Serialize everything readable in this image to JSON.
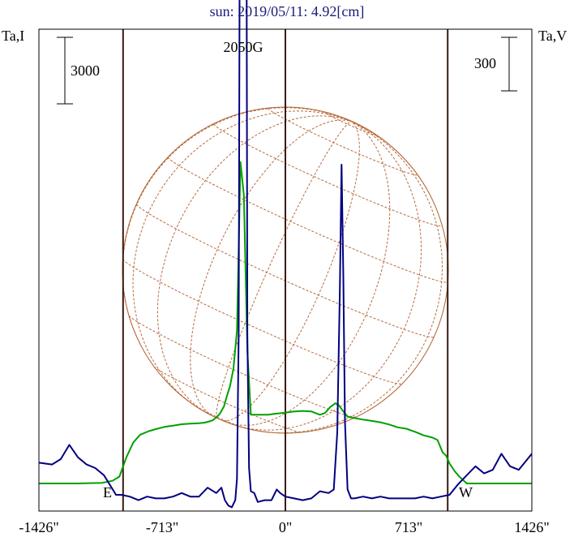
{
  "chart_data": {
    "type": "line",
    "title": "sun: 2019/05/11: 4.92[cm]",
    "left_axis_label": "Ta,I",
    "right_axis_label": "Ta,V",
    "left_scale_bar_label": "3000",
    "left_scale_bar_value": 3000,
    "right_scale_bar_label": "300",
    "right_scale_bar_value": 300,
    "peak_annotation": "2050G",
    "east_label": "E",
    "west_label": "W",
    "x_ticks": [
      "-1426\"",
      "-713\"",
      "0\"",
      "713\"",
      "1426\""
    ],
    "xlim": [
      -1426,
      1426
    ],
    "limb_positions": [
      -939,
      939
    ],
    "series": [
      {
        "color": "#00a000",
        "x": [
          -1426,
          -1200,
          -1060,
          -1000,
          -960,
          -920,
          -880,
          -840,
          -790,
          -750,
          -700,
          -650,
          -600,
          -550,
          -500,
          -470,
          -440,
          -420,
          -400,
          -380,
          -355,
          -340,
          -320,
          -300,
          -280,
          -260,
          -240,
          -220,
          -200,
          -150,
          -100,
          -50,
          0,
          50,
          100,
          150,
          200,
          230,
          260,
          290,
          310,
          330,
          360,
          400,
          450,
          500,
          550,
          600,
          650,
          700,
          750,
          800,
          850,
          880,
          910,
          930,
          950,
          980,
          1010,
          1050,
          1100,
          1426
        ],
        "y": [
          0,
          0,
          30,
          120,
          310,
          1180,
          1850,
          2200,
          2360,
          2450,
          2550,
          2610,
          2670,
          2700,
          2720,
          2740,
          2800,
          2850,
          2980,
          3130,
          3480,
          3900,
          4400,
          5200,
          6900,
          14500,
          13000,
          6000,
          3100,
          3100,
          3100,
          3150,
          3190,
          3250,
          3270,
          3250,
          3100,
          3180,
          3450,
          3620,
          3520,
          3300,
          3010,
          2950,
          2880,
          2820,
          2760,
          2660,
          2530,
          2470,
          2330,
          2170,
          2070,
          1960,
          1400,
          1250,
          900,
          550,
          280,
          0,
          0,
          0
        ]
      },
      {
        "color": "#000080",
        "x": [
          -1426,
          -1350,
          -1300,
          -1250,
          -1200,
          -1150,
          -1100,
          -1050,
          -980,
          -950,
          -900,
          -850,
          -800,
          -750,
          -700,
          -650,
          -600,
          -550,
          -500,
          -450,
          -400,
          -370,
          -350,
          -330,
          -310,
          -290,
          -280,
          -270,
          -262,
          -256,
          -250,
          -244,
          -238,
          -232,
          -226,
          -220,
          -210,
          -200,
          -180,
          -160,
          -120,
          -80,
          -50,
          -30,
          0,
          50,
          100,
          150,
          200,
          250,
          280,
          300,
          315,
          325,
          335,
          345,
          360,
          380,
          400,
          450,
          500,
          550,
          600,
          650,
          700,
          750,
          800,
          850,
          900,
          950,
          1000,
          1050,
          1100,
          1150,
          1200,
          1250,
          1300,
          1350,
          1426
        ],
        "y": [
          130,
          120,
          150,
          230,
          160,
          120,
          100,
          60,
          -50,
          -50,
          -60,
          -80,
          -60,
          -70,
          -70,
          -60,
          -40,
          -60,
          -60,
          -10,
          -40,
          -10,
          -80,
          -110,
          -120,
          -80,
          40,
          850,
          3800,
          8300,
          13600,
          16500,
          13600,
          8300,
          3800,
          850,
          100,
          -30,
          -40,
          -90,
          -80,
          -80,
          -20,
          -40,
          -60,
          -70,
          -80,
          -70,
          -30,
          -40,
          -20,
          300,
          1100,
          1800,
          1200,
          360,
          -20,
          -70,
          -70,
          -60,
          -70,
          -60,
          -70,
          -70,
          -70,
          -70,
          -60,
          -70,
          -60,
          -50,
          10,
          60,
          110,
          70,
          90,
          180,
          110,
          90,
          180
        ]
      }
    ]
  }
}
